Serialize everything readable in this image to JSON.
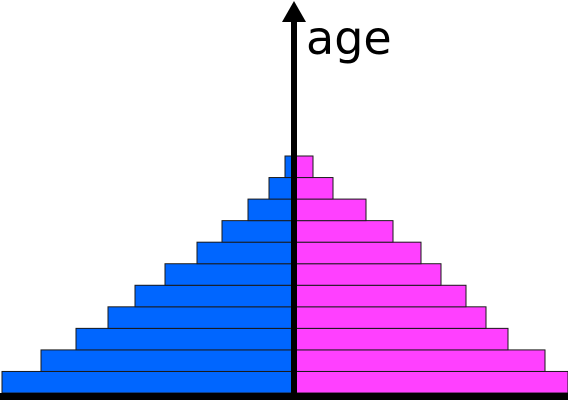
{
  "chart_data": {
    "type": "pyramid",
    "y_label": "age",
    "series": [
      {
        "color": "#0066ff",
        "values": [
          292,
          253,
          218,
          186,
          159,
          129,
          97,
          72,
          46,
          25,
          9
        ]
      },
      {
        "color": "#ff40ff",
        "values": [
          274,
          251,
          214,
          192,
          172,
          147,
          127,
          99,
          72,
          39,
          19
        ]
      }
    ]
  }
}
